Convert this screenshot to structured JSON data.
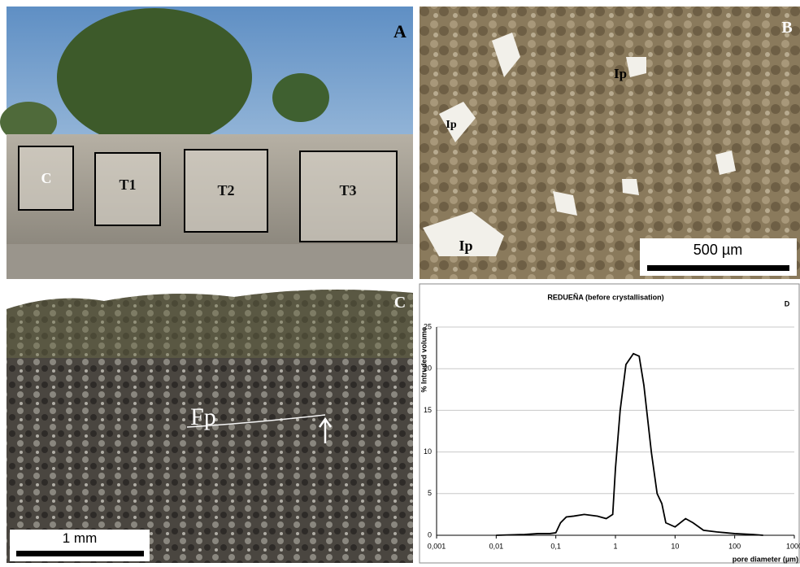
{
  "panels": {
    "a": {
      "letter": "A",
      "boxes": [
        "C",
        "T1",
        "T2",
        "T3"
      ]
    },
    "b": {
      "letter": "B",
      "pores": [
        "Ip",
        "Ip",
        "Ip"
      ],
      "scale": "500 µm"
    },
    "c": {
      "letter": "C",
      "fissure": "Fp",
      "scale": "1 mm"
    }
  },
  "chart_data": {
    "type": "line",
    "letter": "D",
    "title": "REDUEÑA (before crystallisation)",
    "x_label": "pore diameter (µm)",
    "y_label": "% Intruded volume",
    "x": [
      0.01,
      0.03,
      0.05,
      0.08,
      0.1,
      0.12,
      0.15,
      0.2,
      0.3,
      0.5,
      0.7,
      0.9,
      1,
      1.2,
      1.5,
      2,
      2.5,
      3,
      4,
      5,
      6,
      7,
      10,
      15,
      20,
      30,
      50,
      100,
      200,
      300
    ],
    "series": [
      {
        "name": "REDUEÑA",
        "color": "#000000",
        "values": [
          0,
          0.1,
          0.2,
          0.2,
          0.3,
          1.5,
          2.2,
          2.3,
          2.5,
          2.3,
          2.0,
          2.5,
          8,
          15,
          20.5,
          21.8,
          21.5,
          18,
          10,
          5,
          3.8,
          1.5,
          1,
          2,
          1.5,
          0.6,
          0.4,
          0.2,
          0.1,
          0
        ]
      }
    ],
    "xlim": [
      0.001,
      1000
    ],
    "xlog": true,
    "xticks": [
      {
        "value": 0.001,
        "label": "0,001"
      },
      {
        "value": 0.01,
        "label": "0,01"
      },
      {
        "value": 0.1,
        "label": "0,1"
      },
      1,
      10,
      100,
      1000
    ],
    "ylim": [
      0,
      25
    ],
    "yticks": [
      0,
      5,
      10,
      15,
      20,
      25
    ],
    "grid": true
  }
}
